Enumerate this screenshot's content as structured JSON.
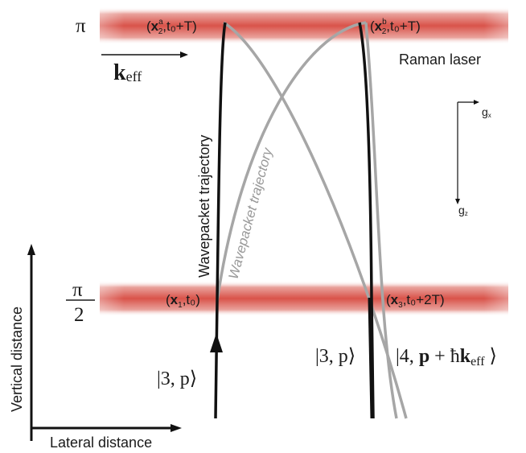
{
  "colors": {
    "beam_core": "#d9534a",
    "beam_edge": "#ffffff",
    "trajectory_dark": "#111111",
    "trajectory_gray": "#a6a6a6",
    "label_gray": "#999999",
    "text": "#1a1a1a"
  },
  "pulses": {
    "top": {
      "label": "π",
      "point_a": "x",
      "point_a_sub": "2",
      "point_a_sup": "a",
      "point_a_time": ",t₀+T)",
      "point_b": "x",
      "point_b_sub": "2",
      "point_b_sup": "b",
      "point_b_time": ",t₀+T)"
    },
    "middle": {
      "label_num": "π",
      "label_den": "2",
      "point_1": "x",
      "point_1_sub": "1",
      "point_1_time": ",t₀)",
      "point_3": "x",
      "point_3_sub": "3",
      "point_3_time": ",t₀+2T)"
    }
  },
  "laser": {
    "k_vector": "k",
    "k_sub": "eff",
    "name": "Raman laser"
  },
  "gravity": {
    "gx": "g",
    "gx_sub": "x",
    "gz": "g",
    "gz_sub": "z"
  },
  "trajectories": {
    "dark_label": "Wavepacket trajectory",
    "gray_label": "Wavepacket trajectory"
  },
  "states": {
    "input": "|3, p⟩",
    "output_3": "|3, p⟩",
    "output_4_prefix": "|4, ",
    "output_4_p": "p",
    "output_4_hk": " + ħ",
    "output_4_k": "k",
    "output_4_sub": "eff",
    "output_4_suffix": " ⟩"
  },
  "axes": {
    "vertical": "Vertical distance",
    "lateral": "Lateral distance"
  }
}
